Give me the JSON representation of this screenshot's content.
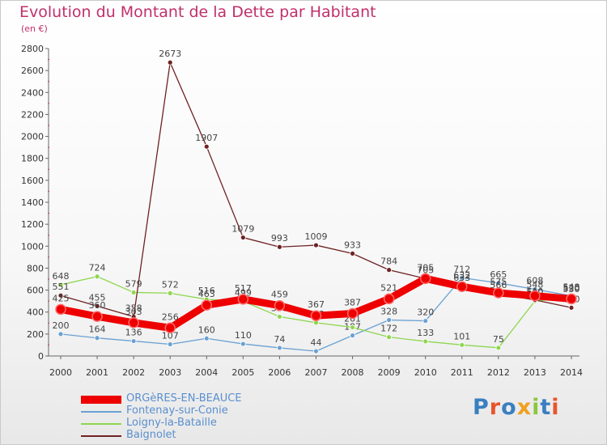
{
  "header": {
    "title": "Evolution du Montant de la Dette par Habitant",
    "subtitle": "(en €)"
  },
  "logo": {
    "text": "Proxiti",
    "colors": [
      "#3a7fc1",
      "#e8552a",
      "#3a7fc1",
      "#f0a020",
      "#8cc63f",
      "#3a7fc1",
      "#e8552a"
    ]
  },
  "chart_data": {
    "type": "line",
    "x": [
      2000,
      2001,
      2002,
      2003,
      2004,
      2005,
      2006,
      2007,
      2008,
      2009,
      2010,
      2011,
      2012,
      2013,
      2014
    ],
    "ylim": [
      0,
      2800
    ],
    "yticks": [
      0,
      200,
      400,
      600,
      800,
      1000,
      1200,
      1400,
      1600,
      1800,
      2000,
      2200,
      2400,
      2600,
      2800
    ],
    "grid": false,
    "legend_position": "bottom-left",
    "series": [
      {
        "name": "ORGèRES-EN-BEAUCE",
        "color": "#ee0000",
        "values": [
          425,
          360,
          303,
          256,
          463,
          517,
          459,
          367,
          387,
          521,
          705,
          632,
          575,
          548,
          520
        ]
      },
      {
        "name": "Fontenay-sur-Conie",
        "color": "#6aa1d2",
        "values": [
          200,
          164,
          136,
          107,
          160,
          110,
          74,
          44,
          187,
          328,
          320,
          712,
          665,
          608,
          548
        ]
      },
      {
        "name": "Loigny-la-Bataille",
        "color": "#8fd650",
        "values": [
          648,
          724,
          579,
          572,
          516,
          499,
          358,
          303,
          261,
          172,
          133,
          101,
          75,
          500,
          530
        ]
      },
      {
        "name": "Baignolet",
        "color": "#6e2222",
        "values": [
          551,
          455,
          358,
          2673,
          1907,
          1079,
          993,
          1009,
          933,
          784,
          705,
          633,
          566,
          510,
          440
        ]
      }
    ]
  }
}
